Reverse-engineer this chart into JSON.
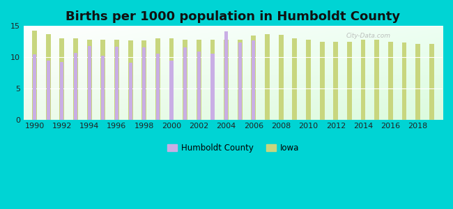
{
  "title": "Births per 1000 population in Humboldt County",
  "years": [
    1990,
    1991,
    1992,
    1993,
    1994,
    1995,
    1996,
    1997,
    1998,
    1999,
    2000,
    2001,
    2002,
    2003,
    2004,
    2005,
    2006,
    2007,
    2008,
    2009,
    2010,
    2011,
    2012,
    2013,
    2014,
    2015,
    2016,
    2017,
    2018,
    2019
  ],
  "humboldt": [
    10.5,
    9.5,
    9.2,
    10.7,
    11.8,
    10.2,
    11.7,
    9.1,
    11.6,
    10.6,
    9.4,
    11.6,
    10.9,
    10.6,
    14.1,
    12.4,
    12.7,
    null,
    null,
    null,
    null,
    null,
    null,
    null,
    null,
    null,
    null,
    null,
    null,
    null
  ],
  "iowa": [
    14.2,
    13.7,
    13.0,
    13.0,
    12.8,
    12.8,
    12.8,
    12.7,
    12.7,
    13.0,
    13.0,
    12.8,
    12.8,
    12.8,
    12.8,
    12.8,
    13.5,
    13.7,
    13.6,
    13.0,
    12.8,
    12.5,
    12.5,
    12.5,
    12.8,
    12.8,
    12.5,
    12.3,
    12.1,
    12.1
  ],
  "humboldt_color": "#c9aee5",
  "iowa_color": "#c8d67e",
  "background_color": "#00d4d4",
  "ylim": [
    0,
    15
  ],
  "yticks": [
    0,
    5,
    10,
    15
  ],
  "title_fontsize": 13,
  "bar_width": 0.35
}
